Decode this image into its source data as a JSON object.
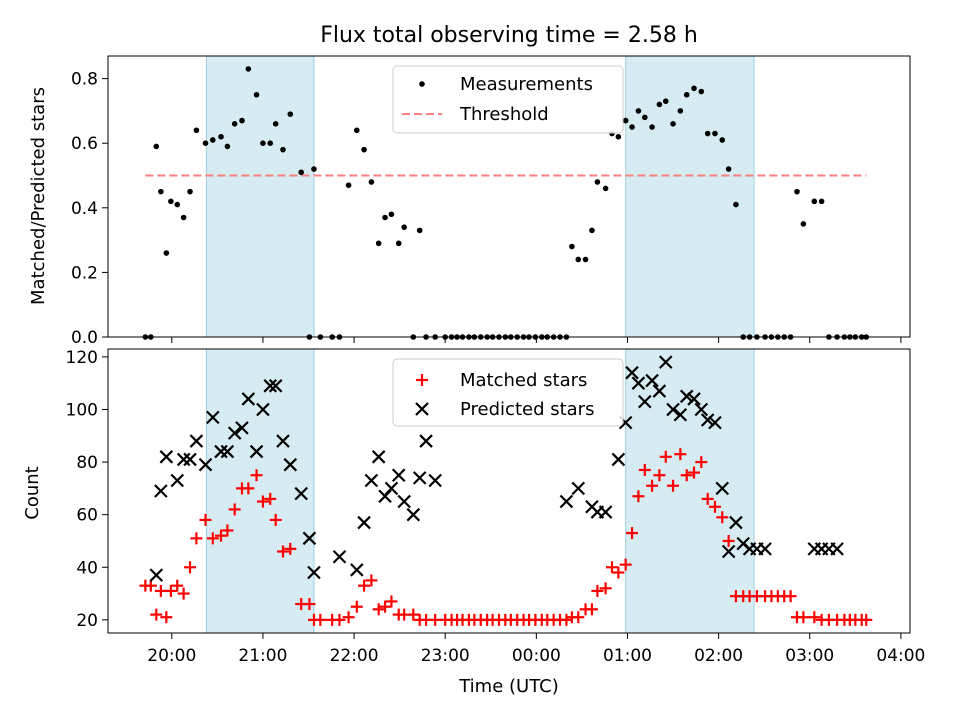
{
  "chart_data": [
    {
      "type": "scatter",
      "title": "Flux total observing time = 2.58 h",
      "xlabel": "",
      "ylabel": "Matched/Predicted stars",
      "ylim": [
        0,
        0.87
      ],
      "yticks": [
        "0.0",
        "0.2",
        "0.4",
        "0.6",
        "0.8"
      ],
      "legend": {
        "placement": "top-center",
        "entries": [
          "Measurements",
          "Threshold"
        ]
      },
      "threshold": {
        "name": "Threshold",
        "value": 0.5,
        "x_start": 19.71,
        "x_end": 27.62,
        "color": "#f77f7f"
      },
      "shaded_intervals": [
        [
          20.38,
          21.56
        ],
        [
          24.98,
          26.39
        ]
      ],
      "series": [
        {
          "name": "Measurements",
          "x": [
            19.71,
            19.77,
            19.83,
            19.88,
            19.94,
            19.99,
            20.06,
            20.13,
            20.2,
            20.27,
            20.37,
            20.45,
            20.54,
            20.61,
            20.69,
            20.77,
            20.84,
            20.93,
            21.0,
            21.08,
            21.14,
            21.22,
            21.3,
            21.42,
            21.51,
            21.56,
            21.63,
            21.76,
            21.84,
            21.94,
            22.03,
            22.11,
            22.19,
            22.27,
            22.34,
            22.41,
            22.49,
            22.55,
            22.65,
            22.72,
            22.79,
            22.89,
            23.0,
            23.07,
            23.13,
            23.19,
            23.26,
            23.32,
            23.39,
            23.46,
            23.52,
            23.59,
            23.66,
            23.72,
            23.79,
            23.86,
            23.92,
            23.99,
            24.06,
            24.12,
            24.19,
            24.26,
            24.33,
            24.39,
            24.46,
            24.54,
            24.61,
            24.67,
            24.76,
            24.83,
            24.9,
            24.98,
            25.05,
            25.12,
            25.19,
            25.27,
            25.35,
            25.42,
            25.5,
            25.58,
            25.65,
            25.73,
            25.81,
            25.88,
            25.96,
            26.04,
            26.11,
            26.19,
            26.27,
            26.34,
            26.42,
            26.51,
            26.58,
            26.65,
            26.72,
            26.79,
            26.86,
            26.93,
            27.05,
            27.13,
            27.21,
            27.3,
            27.38,
            27.44,
            27.5,
            27.57,
            27.62
          ],
          "y": [
            0.0,
            0.0,
            0.59,
            0.45,
            0.26,
            0.42,
            0.41,
            0.37,
            0.45,
            0.64,
            0.6,
            0.61,
            0.62,
            0.59,
            0.66,
            0.67,
            0.83,
            0.75,
            0.6,
            0.6,
            0.66,
            0.58,
            0.69,
            0.51,
            0.0,
            0.52,
            0.0,
            0.0,
            0.0,
            0.47,
            0.64,
            0.58,
            0.48,
            0.29,
            0.37,
            0.38,
            0.29,
            0.34,
            0.0,
            0.33,
            0.0,
            0.0,
            0.0,
            0.0,
            0.0,
            0.0,
            0.0,
            0.0,
            0.0,
            0.0,
            0.0,
            0.0,
            0.0,
            0.0,
            0.0,
            0.0,
            0.0,
            0.0,
            0.0,
            0.0,
            0.0,
            0.0,
            0.0,
            0.28,
            0.24,
            0.24,
            0.33,
            0.48,
            0.46,
            0.63,
            0.62,
            0.67,
            0.65,
            0.7,
            0.68,
            0.65,
            0.72,
            0.73,
            0.66,
            0.7,
            0.75,
            0.77,
            0.76,
            0.63,
            0.63,
            0.61,
            0.52,
            0.41,
            0.0,
            0.0,
            0.0,
            0.0,
            0.0,
            0.0,
            0.0,
            0.0,
            0.45,
            0.35,
            0.42,
            0.42,
            0.0,
            0.0,
            0.0,
            0.0,
            0.0,
            0.0,
            0.0
          ],
          "color": "#000000",
          "marker": "dot"
        }
      ]
    },
    {
      "type": "scatter",
      "title": "",
      "xlabel": "Time (UTC)",
      "ylabel": "Count",
      "ylim": [
        15,
        123
      ],
      "yticks": [
        "20",
        "40",
        "60",
        "80",
        "100",
        "120"
      ],
      "x_ticks": [
        "20:00",
        "21:00",
        "22:00",
        "23:00",
        "00:00",
        "01:00",
        "02:00",
        "03:00",
        "04:00"
      ],
      "legend": {
        "placement": "top-center",
        "entries": [
          "Matched stars",
          "Predicted stars"
        ]
      },
      "shaded_intervals": [
        [
          20.38,
          21.56
        ],
        [
          24.98,
          26.39
        ]
      ],
      "series": [
        {
          "name": "Matched stars",
          "color": "#ff0000",
          "marker": "plus",
          "x": [
            19.71,
            19.77,
            19.83,
            19.88,
            19.94,
            19.99,
            20.06,
            20.13,
            20.2,
            20.27,
            20.37,
            20.45,
            20.54,
            20.61,
            20.69,
            20.77,
            20.84,
            20.93,
            21.0,
            21.08,
            21.14,
            21.22,
            21.3,
            21.42,
            21.51,
            21.56,
            21.63,
            21.76,
            21.84,
            21.94,
            22.03,
            22.11,
            22.19,
            22.27,
            22.34,
            22.41,
            22.49,
            22.55,
            22.65,
            22.72,
            22.79,
            22.89,
            23.0,
            23.07,
            23.13,
            23.19,
            23.26,
            23.32,
            23.39,
            23.46,
            23.52,
            23.59,
            23.66,
            23.72,
            23.79,
            23.86,
            23.92,
            23.99,
            24.06,
            24.12,
            24.19,
            24.26,
            24.33,
            24.39,
            24.46,
            24.54,
            24.61,
            24.67,
            24.76,
            24.83,
            24.9,
            24.98,
            25.05,
            25.12,
            25.19,
            25.27,
            25.35,
            25.42,
            25.5,
            25.58,
            25.65,
            25.73,
            25.81,
            25.88,
            25.96,
            26.04,
            26.11,
            26.19,
            26.27,
            26.34,
            26.42,
            26.51,
            26.58,
            26.65,
            26.72,
            26.79,
            26.86,
            26.93,
            27.05,
            27.13,
            27.21,
            27.3,
            27.38,
            27.44,
            27.5,
            27.57,
            27.62
          ],
          "y": [
            33,
            33,
            22,
            31,
            21,
            31,
            33,
            30,
            40,
            51,
            58,
            51,
            52,
            54,
            62,
            70,
            70,
            75,
            65,
            66,
            58,
            46,
            47,
            26,
            26,
            20,
            20,
            20,
            20,
            21,
            25,
            33,
            35,
            24,
            25,
            27,
            22,
            22,
            22,
            20,
            20,
            20,
            20,
            20,
            20,
            20,
            20,
            20,
            20,
            20,
            20,
            20,
            20,
            20,
            20,
            20,
            20,
            20,
            20,
            20,
            20,
            20,
            20,
            21,
            21,
            24,
            24,
            31,
            32,
            40,
            38,
            41,
            53,
            67,
            77,
            71,
            75,
            82,
            71,
            83,
            75,
            76,
            80,
            66,
            63,
            59,
            50,
            29,
            29,
            29,
            29,
            29,
            29,
            29,
            29,
            29,
            21,
            21,
            21,
            20,
            20,
            20,
            20,
            20,
            20,
            20,
            20
          ]
        },
        {
          "name": "Predicted stars",
          "color": "#000000",
          "marker": "cross",
          "x": [
            19.83,
            19.88,
            19.94,
            20.06,
            20.13,
            20.2,
            20.27,
            20.37,
            20.45,
            20.54,
            20.61,
            20.69,
            20.77,
            20.84,
            20.93,
            21.0,
            21.08,
            21.14,
            21.22,
            21.3,
            21.42,
            21.51,
            21.56,
            21.84,
            22.03,
            22.11,
            22.19,
            22.27,
            22.34,
            22.41,
            22.49,
            22.55,
            22.65,
            22.72,
            22.79,
            22.89,
            24.33,
            24.46,
            24.61,
            24.67,
            24.76,
            24.9,
            24.98,
            25.05,
            25.12,
            25.19,
            25.27,
            25.35,
            25.42,
            25.5,
            25.58,
            25.65,
            25.73,
            25.81,
            25.88,
            25.96,
            26.04,
            26.11,
            26.19,
            26.27,
            26.34,
            26.42,
            26.51,
            27.05,
            27.13,
            27.21,
            27.3
          ],
          "y": [
            37,
            69,
            82,
            73,
            81,
            81,
            88,
            79,
            97,
            84,
            84,
            91,
            93,
            104,
            84,
            100,
            109,
            109,
            88,
            79,
            68,
            51,
            38,
            44,
            39,
            57,
            73,
            82,
            67,
            70,
            75,
            65,
            60,
            74,
            88,
            73,
            65,
            70,
            63,
            61,
            61,
            81,
            95,
            114,
            110,
            103,
            111,
            107,
            118,
            100,
            98,
            105,
            104,
            100,
            96,
            95,
            70,
            46,
            57,
            49,
            47,
            47,
            47,
            47,
            47,
            47,
            47
          ]
        }
      ]
    }
  ]
}
